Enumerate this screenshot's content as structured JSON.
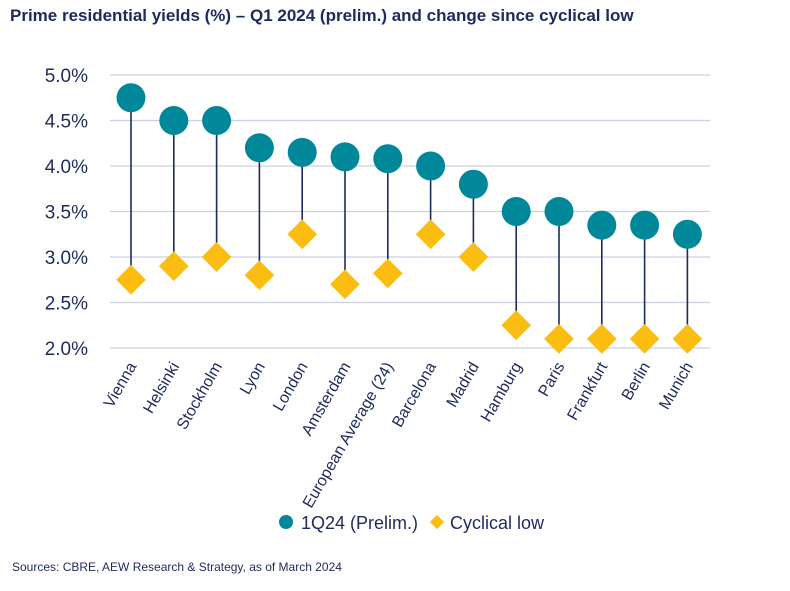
{
  "title": "Prime residential yields (%) – Q1 2024 (prelim.) and change since cyclical low",
  "source": "Sources: CBRE, AEW Research & Strategy, as of March 2024",
  "colors": {
    "primary": "#00889a",
    "cyclical": "#fbbd12",
    "connector": "#1f2a5c",
    "grid": "#c9d0e0",
    "text": "#1f2a5c"
  },
  "chart_data": {
    "type": "scatter",
    "title": "Prime residential yields (%) – Q1 2024 (prelim.) and change since cyclical low",
    "xlabel": "",
    "ylabel": "",
    "ylim": [
      2.0,
      5.0
    ],
    "yticks": [
      "5.0%",
      "4.5%",
      "4.0%",
      "3.5%",
      "3.0%",
      "2.5%",
      "2.0%"
    ],
    "ytick_values": [
      5.0,
      4.5,
      4.0,
      3.5,
      3.0,
      2.5,
      2.0
    ],
    "grid": true,
    "legend_position": "bottom",
    "categories": [
      "Vienna",
      "Helsinki",
      "Stockholm",
      "Lyon",
      "London",
      "Amsterdam",
      "European Average (24)",
      "Barcelona",
      "Madrid",
      "Hamburg",
      "Paris",
      "Frankfurt",
      "Berlin",
      "Munich"
    ],
    "series": [
      {
        "name": "1Q24 (Prelim.)",
        "marker": "circle",
        "color": "#00889a",
        "values": [
          4.75,
          4.5,
          4.5,
          4.2,
          4.15,
          4.1,
          4.08,
          4.0,
          3.8,
          3.5,
          3.5,
          3.35,
          3.35,
          3.25
        ]
      },
      {
        "name": "Cyclical low",
        "marker": "diamond",
        "color": "#fbbd12",
        "values": [
          2.75,
          2.9,
          3.0,
          2.8,
          3.25,
          2.7,
          2.82,
          3.25,
          3.0,
          2.25,
          2.1,
          2.1,
          2.1,
          2.1
        ]
      }
    ]
  }
}
